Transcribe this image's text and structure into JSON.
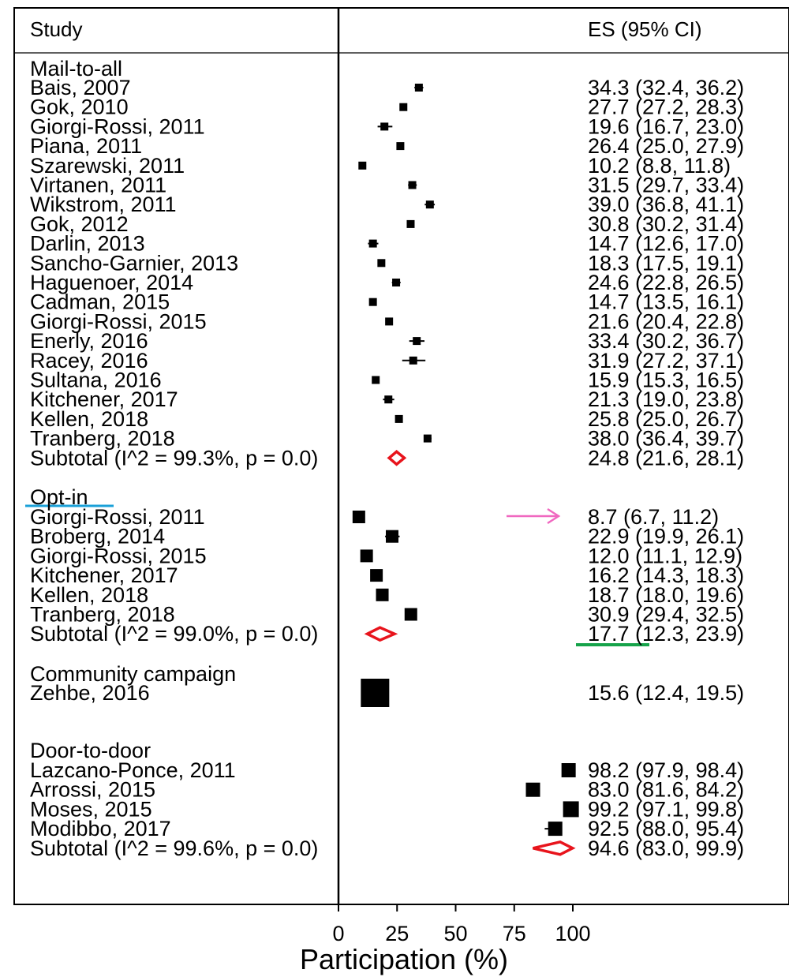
{
  "chart_data": {
    "type": "forest",
    "header": {
      "study": "Study",
      "es": "ES (95% CI)"
    },
    "xlabel": "Participation (%)",
    "xlim": [
      0,
      100
    ],
    "xticks": [
      "0",
      "25",
      "50",
      "75",
      "100"
    ],
    "groups": [
      {
        "name": "Mail-to-all",
        "studies": [
          {
            "label": "Bais, 2007",
            "es": 34.3,
            "lo": 32.4,
            "hi": 36.2,
            "text": "34.3 (32.4, 36.2)"
          },
          {
            "label": "Gok, 2010",
            "es": 27.7,
            "lo": 27.2,
            "hi": 28.3,
            "text": "27.7 (27.2, 28.3)"
          },
          {
            "label": "Giorgi-Rossi, 2011",
            "es": 19.6,
            "lo": 16.7,
            "hi": 23.0,
            "text": "19.6 (16.7, 23.0)"
          },
          {
            "label": "Piana, 2011",
            "es": 26.4,
            "lo": 25.0,
            "hi": 27.9,
            "text": "26.4 (25.0, 27.9)"
          },
          {
            "label": "Szarewski, 2011",
            "es": 10.2,
            "lo": 8.8,
            "hi": 11.8,
            "text": "10.2 (8.8, 11.8)"
          },
          {
            "label": "Virtanen, 2011",
            "es": 31.5,
            "lo": 29.7,
            "hi": 33.4,
            "text": "31.5 (29.7, 33.4)"
          },
          {
            "label": "Wikstrom, 2011",
            "es": 39.0,
            "lo": 36.8,
            "hi": 41.1,
            "text": "39.0 (36.8, 41.1)"
          },
          {
            "label": "Gok, 2012",
            "es": 30.8,
            "lo": 30.2,
            "hi": 31.4,
            "text": "30.8 (30.2, 31.4)"
          },
          {
            "label": "Darlin, 2013",
            "es": 14.7,
            "lo": 12.6,
            "hi": 17.0,
            "text": "14.7 (12.6, 17.0)"
          },
          {
            "label": "Sancho-Garnier, 2013",
            "es": 18.3,
            "lo": 17.5,
            "hi": 19.1,
            "text": "18.3 (17.5, 19.1)"
          },
          {
            "label": "Haguenoer, 2014",
            "es": 24.6,
            "lo": 22.8,
            "hi": 26.5,
            "text": "24.6 (22.8, 26.5)"
          },
          {
            "label": "Cadman, 2015",
            "es": 14.7,
            "lo": 13.5,
            "hi": 16.1,
            "text": "14.7 (13.5, 16.1)"
          },
          {
            "label": "Giorgi-Rossi, 2015",
            "es": 21.6,
            "lo": 20.4,
            "hi": 22.8,
            "text": "21.6 (20.4, 22.8)"
          },
          {
            "label": "Enerly, 2016",
            "es": 33.4,
            "lo": 30.2,
            "hi": 36.7,
            "text": "33.4 (30.2, 36.7)"
          },
          {
            "label": "Racey, 2016",
            "es": 31.9,
            "lo": 27.2,
            "hi": 37.1,
            "text": "31.9 (27.2, 37.1)"
          },
          {
            "label": "Sultana, 2016",
            "es": 15.9,
            "lo": 15.3,
            "hi": 16.5,
            "text": "15.9 (15.3, 16.5)"
          },
          {
            "label": "Kitchener, 2017",
            "es": 21.3,
            "lo": 19.0,
            "hi": 23.8,
            "text": "21.3 (19.0, 23.8)"
          },
          {
            "label": "Kellen, 2018",
            "es": 25.8,
            "lo": 25.0,
            "hi": 26.7,
            "text": "25.8 (25.0, 26.7)"
          },
          {
            "label": "Tranberg, 2018",
            "es": 38.0,
            "lo": 36.4,
            "hi": 39.7,
            "text": "38.0 (36.4, 39.7)"
          }
        ],
        "subtotal": {
          "label": "Subtotal  (I^2 = 99.3%, p = 0.0)",
          "es": 24.8,
          "lo": 21.6,
          "hi": 28.1,
          "text": "24.8 (21.6, 28.1)"
        }
      },
      {
        "name": "Opt-in",
        "studies": [
          {
            "label": "Giorgi-Rossi, 2011",
            "es": 8.7,
            "lo": 6.7,
            "hi": 11.2,
            "text": "8.7 (6.7, 11.2)"
          },
          {
            "label": "Broberg, 2014",
            "es": 22.9,
            "lo": 19.9,
            "hi": 26.1,
            "text": "22.9 (19.9, 26.1)"
          },
          {
            "label": "Giorgi-Rossi, 2015",
            "es": 12.0,
            "lo": 11.1,
            "hi": 12.9,
            "text": "12.0 (11.1, 12.9)"
          },
          {
            "label": "Kitchener, 2017",
            "es": 16.2,
            "lo": 14.3,
            "hi": 18.3,
            "text": "16.2 (14.3, 18.3)"
          },
          {
            "label": "Kellen, 2018",
            "es": 18.7,
            "lo": 18.0,
            "hi": 19.6,
            "text": "18.7 (18.0, 19.6)"
          },
          {
            "label": "Tranberg, 2018",
            "es": 30.9,
            "lo": 29.4,
            "hi": 32.5,
            "text": "30.9 (29.4, 32.5)"
          }
        ],
        "subtotal": {
          "label": "Subtotal  (I^2 = 99.0%, p = 0.0)",
          "es": 17.7,
          "lo": 12.3,
          "hi": 23.9,
          "text": "17.7 (12.3, 23.9)"
        }
      },
      {
        "name": "Community campaign",
        "studies": [
          {
            "label": "Zehbe, 2016",
            "es": 15.6,
            "lo": 12.4,
            "hi": 19.5,
            "text": "15.6 (12.4, 19.5)"
          }
        ]
      },
      {
        "name": "Door-to-door",
        "studies": [
          {
            "label": "Lazcano-Ponce, 2011",
            "es": 98.2,
            "lo": 97.9,
            "hi": 98.4,
            "text": "98.2 (97.9, 98.4)"
          },
          {
            "label": "Arrossi, 2015",
            "es": 83.0,
            "lo": 81.6,
            "hi": 84.2,
            "text": "83.0 (81.6, 84.2)"
          },
          {
            "label": "Moses, 2015",
            "es": 99.2,
            "lo": 97.1,
            "hi": 99.8,
            "text": "99.2 (97.1, 99.8)"
          },
          {
            "label": "Modibbo, 2017",
            "es": 92.5,
            "lo": 88.0,
            "hi": 95.4,
            "text": "92.5 (88.0, 95.4)"
          }
        ],
        "subtotal": {
          "label": "Subtotal  (I^2 = 99.6%, p = 0.0)",
          "es": 94.6,
          "lo": 83.0,
          "hi": 99.9,
          "text": "94.6 (83.0, 99.9)"
        }
      }
    ],
    "colors": {
      "marker": "#000000",
      "subtotal_diamond": "#e8141c",
      "annotation_underline_optin": "#1aa0d8",
      "annotation_arrow": "#f068c0",
      "annotation_underline_es": "#16a34a"
    }
  }
}
